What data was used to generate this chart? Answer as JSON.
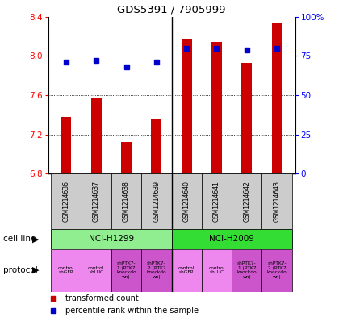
{
  "title": "GDS5391 / 7905999",
  "samples": [
    "GSM1214636",
    "GSM1214637",
    "GSM1214638",
    "GSM1214639",
    "GSM1214640",
    "GSM1214641",
    "GSM1214642",
    "GSM1214643"
  ],
  "transformed_count": [
    7.38,
    7.58,
    7.12,
    7.35,
    8.18,
    8.14,
    7.93,
    8.33
  ],
  "percentile_rank": [
    71,
    72,
    68,
    71,
    80,
    80,
    79,
    80
  ],
  "ylim_left": [
    6.8,
    8.4
  ],
  "ylim_right": [
    0,
    100
  ],
  "yticks_left": [
    6.8,
    7.2,
    7.6,
    8.0,
    8.4
  ],
  "yticks_right": [
    0,
    25,
    50,
    75,
    100
  ],
  "bar_color": "#CC0000",
  "dot_color": "#0000CC",
  "baseline": 6.8,
  "sample_bg_color": "#CCCCCC",
  "cell_line_color_1": "#90EE90",
  "cell_line_color_2": "#33DD33",
  "protocol_color_control": "#EE88EE",
  "protocol_color_knockdown": "#CC55CC",
  "bar_width": 0.35,
  "protocol_labels": [
    "control\nshGFP",
    "control\nshLUC",
    "shPTK7-\n1 (PTK7\nknockdo\nwn)",
    "shPTK7-\n2 (PTK7\nknockdo\nwn)",
    "control\nshGFP",
    "control\nshLUC",
    "shPTK7-\n1 (PTK7\nknockdo\nwn)",
    "shPTK7-\n2 (PTK7\nknockdo\nwn)"
  ],
  "protocol_is_knockdown": [
    false,
    false,
    true,
    true,
    false,
    false,
    true,
    true
  ],
  "legend_label_bar": "transformed count",
  "legend_label_dot": "percentile rank within the sample",
  "cell_line_label": "cell line",
  "protocol_label": "protocol"
}
